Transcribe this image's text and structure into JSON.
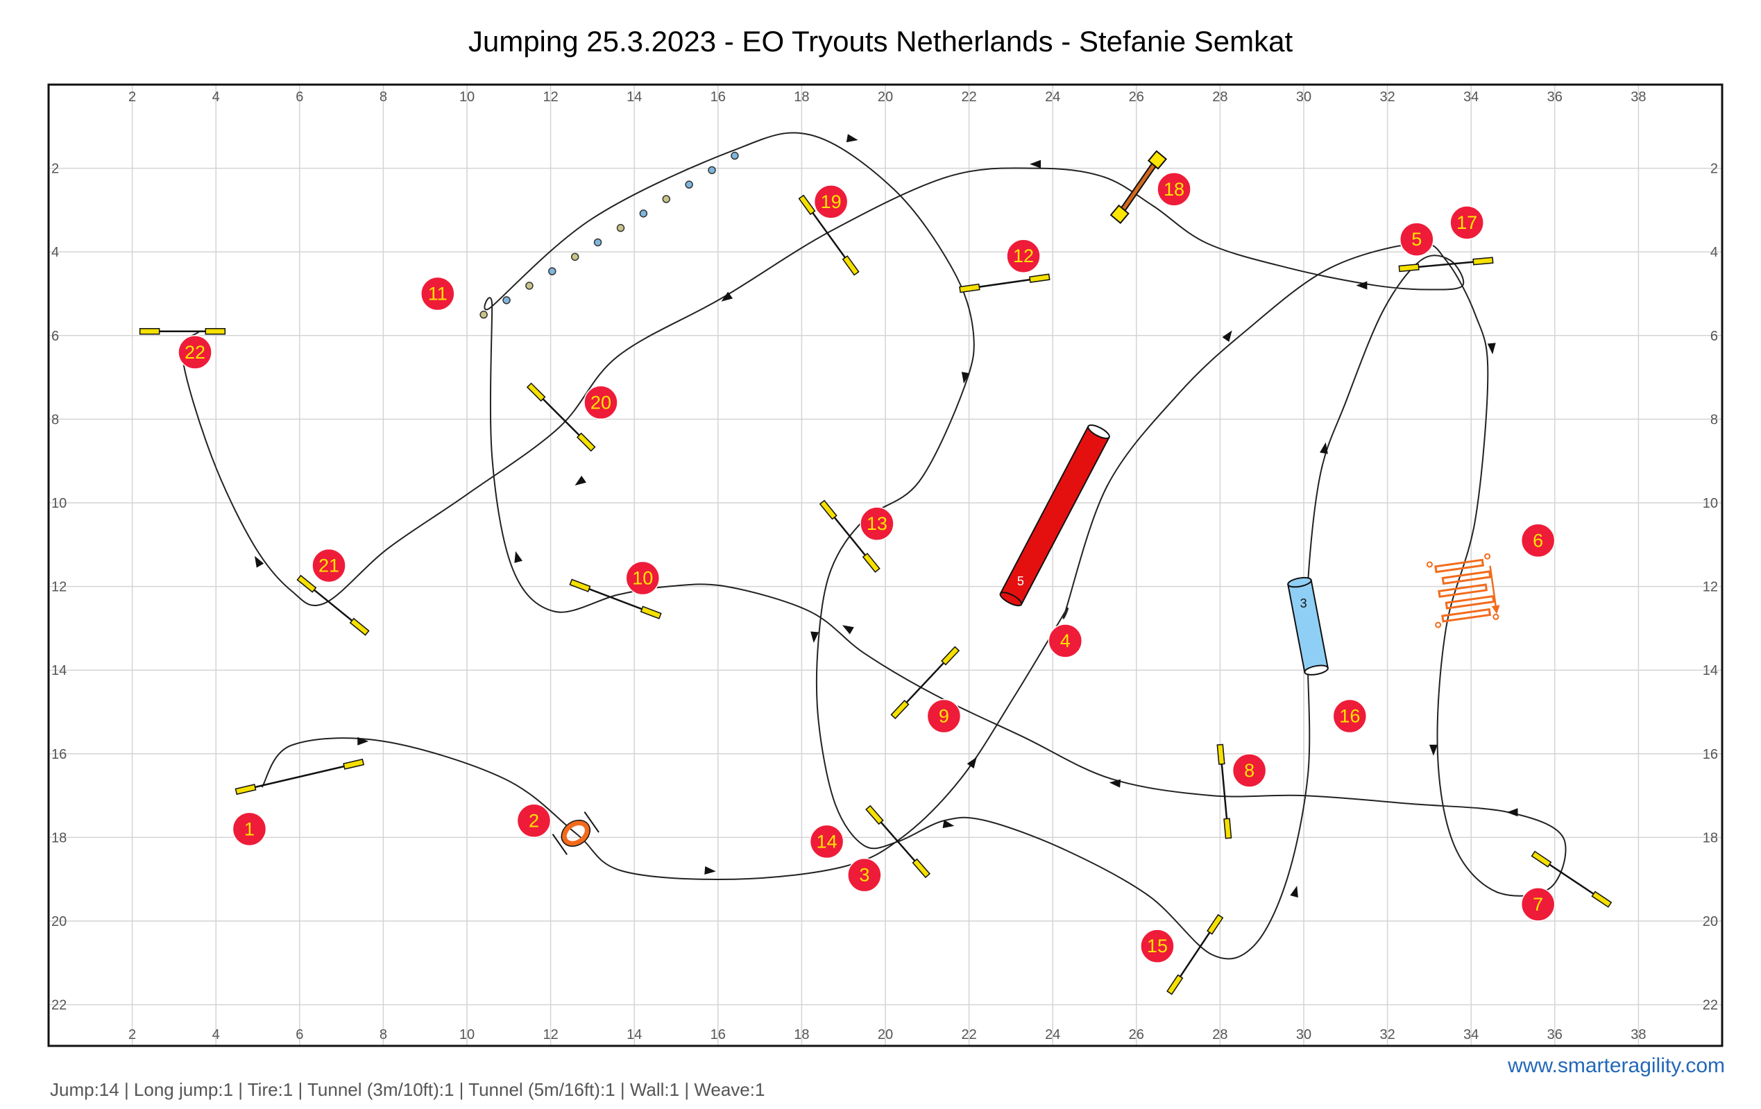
{
  "title": "Jumping 25.3.2023 - EO Tryouts Netherlands - Stefanie Semkat",
  "brand": "www.smarteragility.com",
  "summary": "Jump:14 | Long jump:1 | Tire:1 | Tunnel (3m/10ft):1 | Tunnel (5m/16ft):1 | Wall:1 | Weave:1",
  "colors": {
    "number_circle": "#ee1c39",
    "number_text": "#ffe600",
    "jump_bar": "#f5e000",
    "tunnel_long": "#e41010",
    "tunnel_short": "#8fcff5",
    "weave": "#f26b1d",
    "tire": "#f26b1d",
    "wall": "#d2691e"
  },
  "grid": {
    "x_ticks": [
      "2",
      "4",
      "6",
      "8",
      "10",
      "12",
      "14",
      "16",
      "18",
      "20",
      "22",
      "24",
      "26",
      "28",
      "30",
      "32",
      "34",
      "36",
      "38"
    ],
    "y_ticks": [
      "2",
      "4",
      "6",
      "8",
      "10",
      "12",
      "14",
      "16",
      "18",
      "20",
      "22"
    ]
  },
  "obstacles": {
    "jumps": [
      {
        "number": "1",
        "x1": 4.5,
        "y1": 16.9,
        "x2": 7.5,
        "y2": 16.2
      },
      {
        "number": "3",
        "x1": 19.6,
        "y1": 17.3,
        "x2": 21.0,
        "y2": 18.9
      },
      {
        "number": "8",
        "x1": 28.0,
        "y1": 15.8,
        "x2": 28.2,
        "y2": 18.0
      },
      {
        "number": "9",
        "x1": 20.2,
        "y1": 15.1,
        "x2": 21.7,
        "y2": 13.5
      },
      {
        "number": "10",
        "x1": 12.5,
        "y1": 11.9,
        "x2": 14.6,
        "y2": 12.7
      },
      {
        "number": "12",
        "x1": 21.8,
        "y1": 4.9,
        "x2": 23.9,
        "y2": 4.6
      },
      {
        "number": "13",
        "x1": 18.5,
        "y1": 10.0,
        "x2": 19.8,
        "y2": 11.6
      },
      {
        "number": "15",
        "x1": 26.8,
        "y1": 21.7,
        "x2": 28.0,
        "y2": 19.9
      },
      {
        "number": "17",
        "x1": 32.3,
        "y1": 4.4,
        "x2": 34.5,
        "y2": 4.2
      },
      {
        "number": "19",
        "x1": 18.0,
        "y1": 2.7,
        "x2": 19.3,
        "y2": 4.5
      },
      {
        "number": "20",
        "x1": 11.5,
        "y1": 7.2,
        "x2": 13.0,
        "y2": 8.7
      },
      {
        "number": "21",
        "x1": 6.0,
        "y1": 11.8,
        "x2": 7.6,
        "y2": 13.1
      },
      {
        "number": "22",
        "x1": 2.2,
        "y1": 5.9,
        "x2": 4.2,
        "y2": 5.9
      },
      {
        "number": "7",
        "x1": 35.5,
        "y1": 18.4,
        "x2": 37.3,
        "y2": 19.6
      }
    ],
    "tire": {
      "number": "2",
      "x": 12.6,
      "y": 17.9
    },
    "tunnel_long": {
      "number": "4",
      "label": "5",
      "x1": 23.0,
      "y1": 12.3,
      "x2": 25.1,
      "y2": 8.3
    },
    "tunnel_short": {
      "number": "16",
      "label": "3",
      "x1": 29.9,
      "y1": 11.9,
      "x2": 30.3,
      "y2": 14.0
    },
    "weave": {
      "number": "11",
      "poles": 12,
      "x1": 10.4,
      "y1": 5.5,
      "x2": 16.4,
      "y2": 1.7
    },
    "long_jump": {
      "number": "6",
      "x": 33.8,
      "y": 12.1
    },
    "wall": {
      "number": "18",
      "x1": 25.6,
      "y1": 3.1,
      "x2": 26.5,
      "y2": 1.8
    }
  },
  "number_labels": [
    {
      "n": "1",
      "x": 4.8,
      "y": 17.8
    },
    {
      "n": "2",
      "x": 11.6,
      "y": 17.6
    },
    {
      "n": "3",
      "x": 19.5,
      "y": 18.9
    },
    {
      "n": "4",
      "x": 24.3,
      "y": 13.3
    },
    {
      "n": "5",
      "x": 32.7,
      "y": 3.7
    },
    {
      "n": "6",
      "x": 35.6,
      "y": 10.9
    },
    {
      "n": "7",
      "x": 35.6,
      "y": 19.6
    },
    {
      "n": "8",
      "x": 28.7,
      "y": 16.4
    },
    {
      "n": "9",
      "x": 21.4,
      "y": 15.1
    },
    {
      "n": "10",
      "x": 14.2,
      "y": 11.8
    },
    {
      "n": "11",
      "x": 9.3,
      "y": 5.0
    },
    {
      "n": "12",
      "x": 23.3,
      "y": 4.1
    },
    {
      "n": "13",
      "x": 19.8,
      "y": 10.5
    },
    {
      "n": "14",
      "x": 18.6,
      "y": 18.1
    },
    {
      "n": "15",
      "x": 26.5,
      "y": 20.6
    },
    {
      "n": "16",
      "x": 31.1,
      "y": 15.1
    },
    {
      "n": "17",
      "x": 33.9,
      "y": 3.3
    },
    {
      "n": "18",
      "x": 26.9,
      "y": 2.5
    },
    {
      "n": "19",
      "x": 18.7,
      "y": 2.8
    },
    {
      "n": "20",
      "x": 13.2,
      "y": 7.6
    },
    {
      "n": "21",
      "x": 6.7,
      "y": 11.5
    },
    {
      "n": "22",
      "x": 3.5,
      "y": 6.4
    }
  ],
  "path": [
    [
      5.1,
      16.8
    ],
    [
      5.8,
      15.8
    ],
    [
      8.0,
      15.7
    ],
    [
      10.9,
      16.6
    ],
    [
      12.6,
      17.9
    ],
    [
      13.7,
      18.8
    ],
    [
      16.4,
      19.0
    ],
    [
      19.0,
      18.7
    ],
    [
      20.4,
      18.0
    ],
    [
      21.8,
      16.6
    ],
    [
      23.1,
      14.6
    ],
    [
      24.3,
      12.6
    ],
    [
      24.3,
      12.6
    ],
    [
      25.3,
      9.6
    ],
    [
      27.0,
      7.4
    ],
    [
      28.6,
      5.9
    ],
    [
      30.6,
      4.4
    ],
    [
      32.7,
      3.8
    ],
    [
      33.4,
      4.2
    ],
    [
      34.1,
      5.5
    ],
    [
      34.4,
      6.9
    ],
    [
      34.1,
      10.4
    ],
    [
      33.4,
      13.0
    ],
    [
      33.2,
      16.0
    ],
    [
      33.6,
      18.2
    ],
    [
      34.6,
      19.3
    ],
    [
      35.9,
      19.2
    ],
    [
      36.2,
      18.0
    ],
    [
      34.9,
      17.4
    ],
    [
      32.6,
      17.2
    ],
    [
      30.0,
      17.0
    ],
    [
      27.8,
      17.0
    ],
    [
      25.4,
      16.6
    ],
    [
      23.3,
      15.6
    ],
    [
      21.2,
      14.6
    ],
    [
      19.5,
      13.6
    ],
    [
      18.2,
      12.6
    ],
    [
      16.2,
      12.0
    ],
    [
      14.8,
      12.0
    ],
    [
      13.6,
      12.2
    ],
    [
      12.1,
      12.6
    ],
    [
      11.1,
      11.6
    ],
    [
      10.6,
      8.9
    ],
    [
      10.6,
      5.3
    ],
    [
      10.6,
      5.3
    ],
    [
      13.0,
      3.2
    ],
    [
      16.3,
      1.6
    ],
    [
      18.2,
      1.2
    ],
    [
      20.2,
      2.5
    ],
    [
      21.6,
      4.4
    ],
    [
      22.1,
      5.9
    ],
    [
      21.9,
      7.2
    ],
    [
      20.8,
      9.5
    ],
    [
      19.5,
      10.4
    ],
    [
      18.7,
      11.6
    ],
    [
      18.4,
      13.3
    ],
    [
      18.4,
      15.2
    ],
    [
      18.8,
      17.2
    ],
    [
      19.5,
      18.2
    ],
    [
      20.3,
      18.1
    ],
    [
      21.4,
      17.6
    ],
    [
      22.4,
      17.6
    ],
    [
      24.3,
      18.3
    ],
    [
      26.3,
      19.4
    ],
    [
      27.8,
      20.8
    ],
    [
      28.8,
      20.6
    ],
    [
      29.6,
      19.0
    ],
    [
      30.1,
      16.5
    ],
    [
      30.1,
      14.0
    ],
    [
      30.1,
      14.0
    ],
    [
      30.1,
      11.9
    ],
    [
      30.4,
      9.3
    ],
    [
      31.0,
      7.6
    ],
    [
      31.9,
      5.4
    ],
    [
      32.8,
      4.2
    ],
    [
      33.5,
      4.2
    ],
    [
      33.8,
      4.8
    ],
    [
      33.0,
      4.9
    ],
    [
      31.7,
      4.8
    ],
    [
      29.7,
      4.4
    ],
    [
      27.7,
      3.8
    ],
    [
      26.4,
      2.9
    ],
    [
      25.2,
      2.2
    ],
    [
      23.6,
      2.0
    ],
    [
      21.5,
      2.2
    ],
    [
      18.7,
      3.5
    ],
    [
      16.1,
      5.1
    ],
    [
      13.6,
      6.5
    ],
    [
      12.2,
      8.2
    ],
    [
      10.0,
      9.8
    ],
    [
      8.1,
      11.1
    ],
    [
      6.6,
      12.4
    ],
    [
      5.8,
      12.1
    ],
    [
      4.9,
      11.0
    ],
    [
      3.9,
      8.9
    ],
    [
      3.2,
      6.5
    ],
    [
      3.6,
      5.9
    ]
  ],
  "arrows": [
    {
      "x": 7.5,
      "y": 15.7,
      "angle": 0
    },
    {
      "x": 15.8,
      "y": 18.8,
      "angle": 5
    },
    {
      "x": 22.1,
      "y": 16.2,
      "angle": -55
    },
    {
      "x": 28.2,
      "y": 6.0,
      "angle": -55
    },
    {
      "x": 34.5,
      "y": 6.3,
      "angle": 85
    },
    {
      "x": 33.1,
      "y": 15.9,
      "angle": 90
    },
    {
      "x": 35.0,
      "y": 17.4,
      "angle": 180
    },
    {
      "x": 25.5,
      "y": 16.7,
      "angle": 185
    },
    {
      "x": 19.1,
      "y": 13.0,
      "angle": 210
    },
    {
      "x": 11.2,
      "y": 11.3,
      "angle": 255
    },
    {
      "x": 19.2,
      "y": 1.3,
      "angle": 10
    },
    {
      "x": 21.9,
      "y": 7.0,
      "angle": 100
    },
    {
      "x": 18.3,
      "y": 13.2,
      "angle": 95
    },
    {
      "x": 21.5,
      "y": 17.7,
      "angle": 10
    },
    {
      "x": 29.8,
      "y": 19.3,
      "angle": -75
    },
    {
      "x": 30.5,
      "y": 8.7,
      "angle": -80
    },
    {
      "x": 31.4,
      "y": 4.8,
      "angle": 180
    },
    {
      "x": 23.6,
      "y": 1.9,
      "angle": 180
    },
    {
      "x": 16.2,
      "y": 5.1,
      "angle": 145
    },
    {
      "x": 12.7,
      "y": 9.5,
      "angle": 145
    },
    {
      "x": 5.0,
      "y": 11.4,
      "angle": 240
    }
  ]
}
